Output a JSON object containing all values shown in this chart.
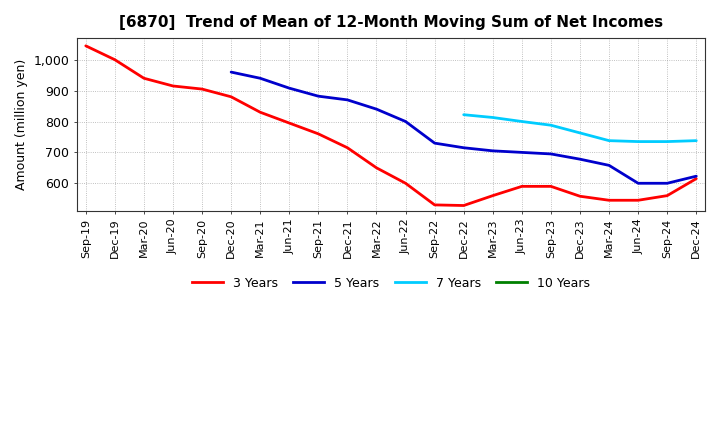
{
  "title": "[6870]  Trend of Mean of 12-Month Moving Sum of Net Incomes",
  "ylabel": "Amount (million yen)",
  "background_color": "#ffffff",
  "grid_color": "#999999",
  "ylim": [
    510,
    1070
  ],
  "yticks": [
    600,
    700,
    800,
    900,
    1000
  ],
  "ytick_labels": [
    "600",
    "700",
    "800",
    "900",
    "1,000"
  ],
  "xtick_labels": [
    "Sep-19",
    "Dec-19",
    "Mar-20",
    "Jun-20",
    "Sep-20",
    "Dec-20",
    "Mar-21",
    "Jun-21",
    "Sep-21",
    "Dec-21",
    "Mar-22",
    "Jun-22",
    "Sep-22",
    "Dec-22",
    "Mar-23",
    "Jun-23",
    "Sep-23",
    "Dec-23",
    "Mar-24",
    "Jun-24",
    "Sep-24",
    "Dec-24"
  ],
  "series": [
    {
      "label": "3 Years",
      "color": "#ff0000",
      "x": [
        0,
        1,
        2,
        3,
        4,
        5,
        6,
        7,
        8,
        9,
        10,
        11,
        12,
        13,
        14,
        15,
        16,
        17,
        18,
        19,
        20,
        21
      ],
      "y": [
        1045,
        1000,
        940,
        915,
        905,
        880,
        830,
        795,
        760,
        715,
        650,
        600,
        530,
        528,
        560,
        590,
        590,
        558,
        545,
        545,
        560,
        615
      ]
    },
    {
      "label": "5 Years",
      "color": "#0000cc",
      "x": [
        5,
        6,
        7,
        8,
        9,
        10,
        11,
        12,
        13,
        14,
        15,
        16,
        17,
        18,
        19,
        20,
        21
      ],
      "y": [
        960,
        940,
        908,
        882,
        870,
        840,
        800,
        730,
        715,
        705,
        700,
        695,
        678,
        658,
        600,
        600,
        623
      ]
    },
    {
      "label": "7 Years",
      "color": "#00ccff",
      "x": [
        13,
        14,
        15,
        16,
        17,
        18,
        19,
        20,
        21
      ],
      "y": [
        822,
        813,
        800,
        788,
        763,
        738,
        735,
        735,
        738
      ]
    },
    {
      "label": "10 Years",
      "color": "#008000",
      "x": [],
      "y": []
    }
  ],
  "title_fontsize": 11,
  "ylabel_fontsize": 9,
  "xtick_fontsize": 8,
  "ytick_fontsize": 9,
  "linewidth": 2.0,
  "legend_fontsize": 9
}
